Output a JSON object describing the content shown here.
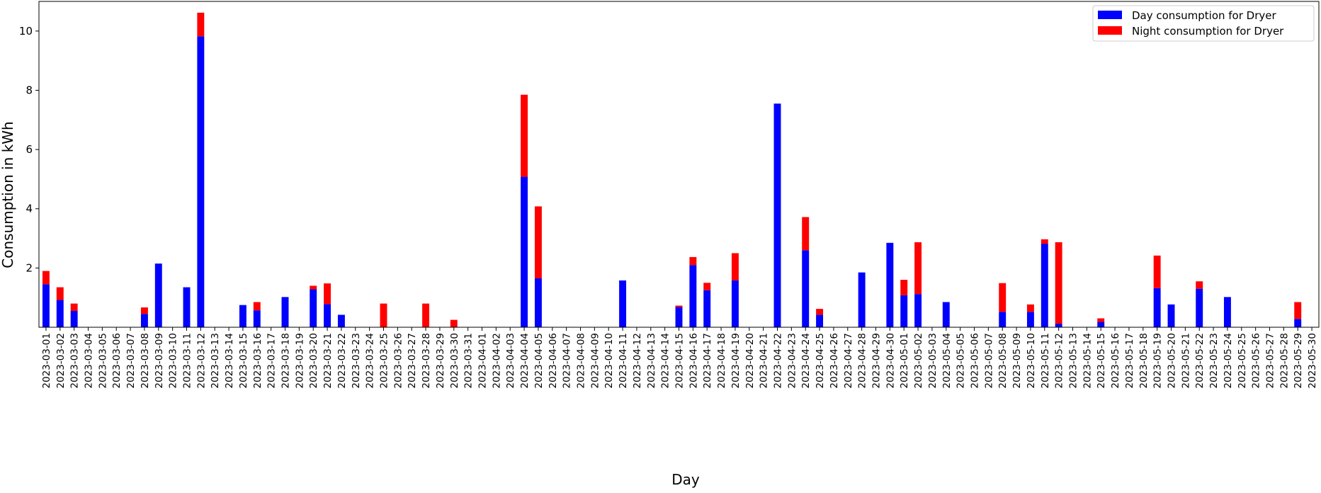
{
  "chart_data": {
    "type": "bar",
    "stacked": true,
    "title": "",
    "xlabel": "Day",
    "ylabel": "Consumption in kWh",
    "ylim": [
      0,
      11
    ],
    "yticks": [
      2,
      4,
      6,
      8,
      10
    ],
    "grid": false,
    "legend_position": "top-right",
    "categories": [
      "2023-03-01",
      "2023-03-02",
      "2023-03-03",
      "2023-03-04",
      "2023-03-05",
      "2023-03-06",
      "2023-03-07",
      "2023-03-08",
      "2023-03-09",
      "2023-03-10",
      "2023-03-11",
      "2023-03-12",
      "2023-03-13",
      "2023-03-14",
      "2023-03-15",
      "2023-03-16",
      "2023-03-17",
      "2023-03-18",
      "2023-03-19",
      "2023-03-20",
      "2023-03-21",
      "2023-03-22",
      "2023-03-23",
      "2023-03-24",
      "2023-03-25",
      "2023-03-26",
      "2023-03-27",
      "2023-03-28",
      "2023-03-29",
      "2023-03-30",
      "2023-03-31",
      "2023-04-01",
      "2023-04-02",
      "2023-04-03",
      "2023-04-04",
      "2023-04-05",
      "2023-04-06",
      "2023-04-07",
      "2023-04-08",
      "2023-04-09",
      "2023-04-10",
      "2023-04-11",
      "2023-04-12",
      "2023-04-13",
      "2023-04-14",
      "2023-04-15",
      "2023-04-16",
      "2023-04-17",
      "2023-04-18",
      "2023-04-19",
      "2023-04-20",
      "2023-04-21",
      "2023-04-22",
      "2023-04-23",
      "2023-04-24",
      "2023-04-25",
      "2023-04-26",
      "2023-04-27",
      "2023-04-28",
      "2023-04-29",
      "2023-04-30",
      "2023-05-01",
      "2023-05-02",
      "2023-05-03",
      "2023-05-04",
      "2023-05-05",
      "2023-05-06",
      "2023-05-07",
      "2023-05-08",
      "2023-05-09",
      "2023-05-10",
      "2023-05-11",
      "2023-05-12",
      "2023-05-13",
      "2023-05-14",
      "2023-05-15",
      "2023-05-16",
      "2023-05-17",
      "2023-05-18",
      "2023-05-19",
      "2023-05-20",
      "2023-05-21",
      "2023-05-22",
      "2023-05-23",
      "2023-05-24",
      "2023-05-25",
      "2023-05-26",
      "2023-05-27",
      "2023-05-28",
      "2023-05-29",
      "2023-05-30"
    ],
    "series": [
      {
        "name": "Day consumption for Dryer",
        "color": "#0000ff",
        "values": [
          1.45,
          0.92,
          0.55,
          0,
          0,
          0,
          0,
          0.45,
          2.15,
          0,
          1.35,
          9.82,
          0,
          0,
          0.75,
          0.57,
          0,
          1.02,
          0,
          1.28,
          0.78,
          0.42,
          0,
          0,
          0,
          0,
          0,
          0,
          0,
          0,
          0,
          0,
          0,
          0,
          5.08,
          1.65,
          0,
          0,
          0,
          0,
          0,
          1.58,
          0,
          0,
          0,
          0.68,
          2.1,
          1.25,
          0,
          1.58,
          0,
          0,
          7.55,
          0,
          2.6,
          0.42,
          0,
          0,
          1.85,
          0,
          2.85,
          1.08,
          1.12,
          0,
          0.85,
          0,
          0,
          0,
          0.52,
          0,
          0.52,
          2.82,
          0.12,
          0,
          0,
          0.18,
          0,
          0,
          0,
          1.32,
          0.77,
          0,
          1.3,
          0,
          1.02,
          0,
          0,
          0,
          0,
          0.28,
          0
        ]
      },
      {
        "name": "Night consumption for Dryer",
        "color": "#ff0000",
        "values": [
          0.45,
          0.43,
          0.25,
          0,
          0,
          0,
          0,
          0.22,
          0,
          0,
          0,
          0.8,
          0,
          0,
          0,
          0.28,
          0,
          0,
          0,
          0.12,
          0.7,
          0,
          0,
          0,
          0.8,
          0,
          0,
          0.8,
          0,
          0.25,
          0,
          0,
          0,
          0,
          2.77,
          2.43,
          0,
          0,
          0,
          0,
          0,
          0,
          0,
          0,
          0,
          0.05,
          0.27,
          0.25,
          0,
          0.92,
          0,
          0,
          0,
          0,
          1.12,
          0.2,
          0,
          0,
          0,
          0,
          0,
          0.52,
          1.75,
          0,
          0,
          0,
          0,
          0,
          0.97,
          0,
          0.25,
          0.15,
          2.75,
          0,
          0,
          0.12,
          0,
          0,
          0,
          1.1,
          0,
          0,
          0.25,
          0,
          0,
          0,
          0,
          0,
          0,
          0.57,
          0
        ]
      }
    ]
  }
}
